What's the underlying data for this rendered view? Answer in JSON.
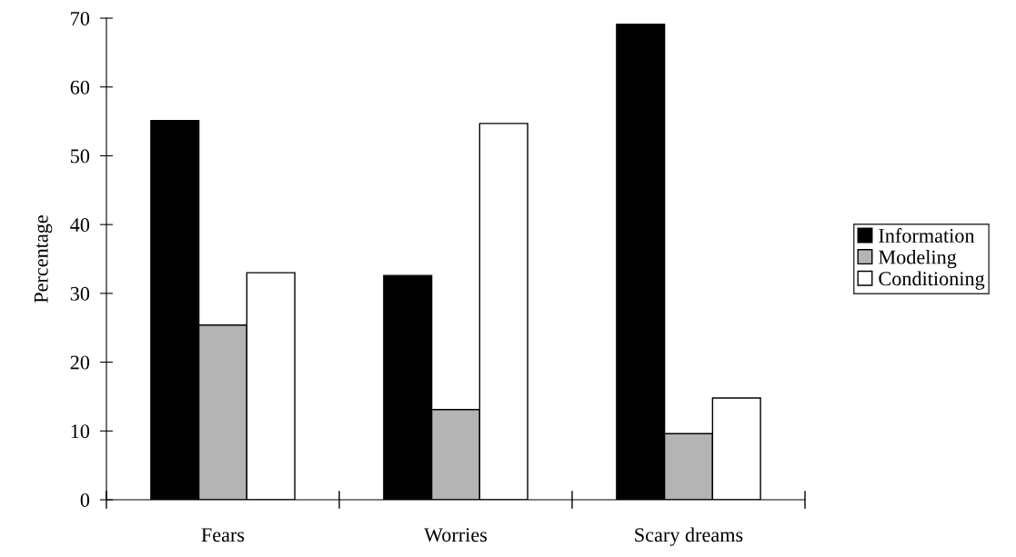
{
  "chart_data": {
    "type": "bar",
    "ylabel": "Percentage",
    "categories": [
      "Fears",
      "Worries",
      "Scary dreams"
    ],
    "series": [
      {
        "name": "Information",
        "color": "#000000",
        "values": [
          55.1,
          32.6,
          69.1
        ]
      },
      {
        "name": "Modeling",
        "color": "#b4b4b4",
        "values": [
          25.4,
          13.1,
          9.6
        ]
      },
      {
        "name": "Conditioning",
        "color": "#ffffff",
        "values": [
          33.0,
          54.7,
          14.8
        ]
      }
    ],
    "ylim": [
      0,
      70
    ],
    "yticks": [
      0,
      10,
      20,
      30,
      40,
      50,
      60,
      70
    ],
    "grid": false,
    "legend": "right"
  }
}
